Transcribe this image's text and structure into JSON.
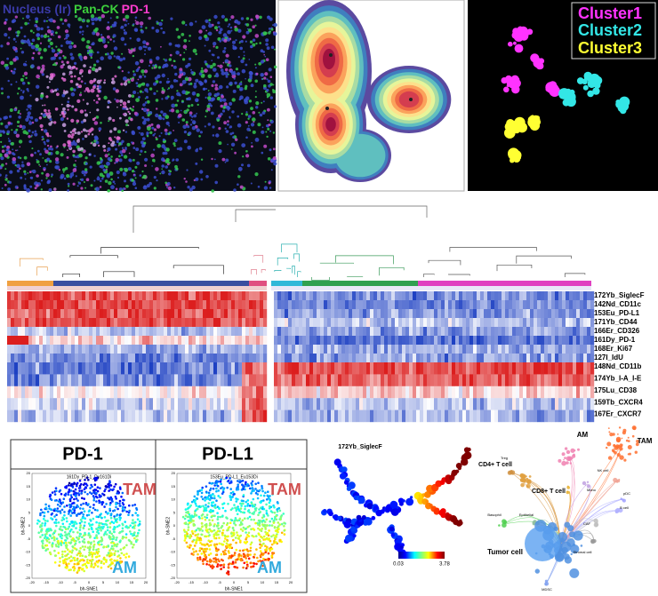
{
  "panel_a": {
    "channels": [
      "Nucleus (Ir)",
      "Pan-CK",
      "PD-1"
    ]
  },
  "panel_c": {
    "clusters": [
      "Cluster1",
      "Cluster2",
      "Cluster3"
    ]
  },
  "heatmap": {
    "markers_top": [
      "172Yb_SiglecF",
      "142Nd_CD11c",
      "153Eu_PD-L1",
      "171Yb_CD44",
      "166Er_CD326",
      "161Dy_PD-1",
      "168Er_Ki67",
      "127I_IdU"
    ],
    "markers_bottom": [
      "148Nd_CD11b",
      "174Yb_I-A_I-E",
      "175Lu_CD38",
      "159Tb_CXCR4",
      "167Er_CXCR7"
    ]
  },
  "tsne": {
    "panels": [
      {
        "title": "PD-1",
        "subtitle": "161Dy_PD-1_Dy161Di",
        "label_top": "TAM",
        "label_bottom": "AM"
      },
      {
        "title": "PD-L1",
        "subtitle": "153Eu_PD-L1_Eu153Di",
        "label_top": "TAM",
        "label_bottom": "AM"
      }
    ],
    "x_label": "bh-SNE1",
    "y_label": "bh-SNE2",
    "ticks": [
      "-20",
      "-15",
      "-10",
      "-5",
      "0",
      "5",
      "10",
      "15",
      "20"
    ]
  },
  "spade": {
    "title": "172Yb_SiglecF",
    "scale_min": 0.03,
    "scale_max": 3.78
  },
  "network": {
    "nodes": [
      "AM",
      "TAM",
      "CD4+ T cell",
      "CD8+ T cell",
      "Treg",
      "Basophil",
      "Epithelial",
      "Tumor cell",
      "Stromal cell",
      "B cell",
      "NK cell",
      "Mono",
      "CAF",
      "MDSC",
      "pDC"
    ]
  }
}
